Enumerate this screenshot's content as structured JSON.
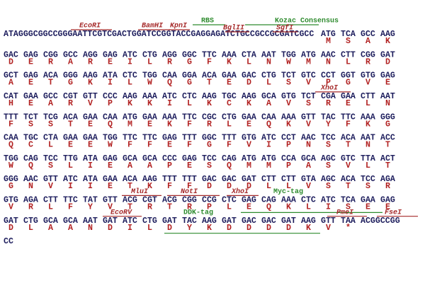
{
  "lines": [
    {
      "leader": "ATAGGGCGGCCGGGAATTCGTCGACTGGATCCGGTACCGAGGAGATCTGCCGCCGCGATCGCC",
      "codons": [
        "ATG",
        "TCA",
        "GCC",
        "AAG"
      ],
      "aa": [
        "M",
        "S",
        "A",
        "K"
      ],
      "annotations": [
        {
          "label": "EcoRI",
          "color": "#a52a2a"
        },
        {
          "label": "BamHI",
          "color": "#a52a2a"
        },
        {
          "label": "KpnI",
          "color": "#a52a2a"
        },
        {
          "label": "RBS",
          "color": "#2e8b2e"
        },
        {
          "label": "BglII",
          "color": "#a52a2a"
        },
        {
          "label": "Kozac Consensus",
          "color": "#2e8b2e"
        },
        {
          "label": "SgfI",
          "color": "#a52a2a"
        }
      ]
    },
    {
      "codons": [
        "GAC",
        "GAG",
        "CGG",
        "GCC",
        "AGG",
        "GAG",
        "ATC",
        "CTG",
        "AGG",
        "GGC",
        "TTC",
        "AAA",
        "CTA",
        "AAT",
        "TGG",
        "ATG",
        "AAC",
        "CTT",
        "CGG",
        "GAT"
      ],
      "aa": [
        "D",
        "E",
        "R",
        "A",
        "R",
        "E",
        "I",
        "L",
        "R",
        "G",
        "F",
        "K",
        "L",
        "N",
        "W",
        "M",
        "N",
        "L",
        "R",
        "D"
      ]
    },
    {
      "codons": [
        "GCT",
        "GAG",
        "ACA",
        "GGG",
        "AAG",
        "ATA",
        "CTC",
        "TGG",
        "CAA",
        "GGA",
        "ACA",
        "GAA",
        "GAC",
        "CTG",
        "TCT",
        "GTC",
        "CCT",
        "GGT",
        "GTG",
        "GAG"
      ],
      "aa": [
        "A",
        "E",
        "T",
        "G",
        "K",
        "I",
        "L",
        "W",
        "Q",
        "G",
        "T",
        "E",
        "D",
        "L",
        "S",
        "V",
        "P",
        "G",
        "V",
        "E"
      ]
    },
    {
      "codons": [
        "CAT",
        "GAA",
        "GCC",
        "CGT",
        "GTT",
        "CCC",
        "AAG",
        "AAA",
        "ATC",
        "CTC",
        "AAG",
        "TGC",
        "AAG",
        "GCA",
        "GTG",
        "TCT",
        "CGA",
        "GAA",
        "CTT",
        "AAT"
      ],
      "aa": [
        "H",
        "E",
        "A",
        "R",
        "V",
        "P",
        "K",
        "K",
        "I",
        "L",
        "K",
        "C",
        "K",
        "A",
        "V",
        "S",
        "R",
        "E",
        "L",
        "N"
      ],
      "annotations": [
        {
          "label": "XhoI",
          "color": "#a52a2a"
        }
      ]
    },
    {
      "codons": [
        "TTT",
        "TCT",
        "TCG",
        "ACA",
        "GAA",
        "CAA",
        "ATG",
        "GAA",
        "AAA",
        "TTC",
        "CGC",
        "CTG",
        "GAA",
        "CAA",
        "AAA",
        "GTT",
        "TAC",
        "TTC",
        "AAA",
        "GGG"
      ],
      "aa": [
        "F",
        "S",
        "S",
        "T",
        "E",
        "Q",
        "M",
        "E",
        "K",
        "F",
        "R",
        "L",
        "E",
        "Q",
        "K",
        "V",
        "Y",
        "F",
        "K",
        "G"
      ]
    },
    {
      "codons": [
        "CAA",
        "TGC",
        "CTA",
        "GAA",
        "GAA",
        "TGG",
        "TTC",
        "TTC",
        "GAG",
        "TTT",
        "GGC",
        "TTT",
        "GTG",
        "ATC",
        "CCT",
        "AAC",
        "TCC",
        "ACA",
        "AAT",
        "ACC"
      ],
      "aa": [
        "Q",
        "C",
        "L",
        "E",
        "E",
        "W",
        "F",
        "F",
        "E",
        "F",
        "G",
        "F",
        "V",
        "I",
        "P",
        "N",
        "S",
        "T",
        "N",
        "T"
      ]
    },
    {
      "codons": [
        "TGG",
        "CAG",
        "TCC",
        "TTG",
        "ATA",
        "GAG",
        "GCA",
        "GCA",
        "CCC",
        "GAG",
        "TCC",
        "CAG",
        "ATG",
        "ATG",
        "CCA",
        "GCA",
        "AGC",
        "GTC",
        "TTA",
        "ACT"
      ],
      "aa": [
        "W",
        "Q",
        "S",
        "L",
        "I",
        "E",
        "A",
        "A",
        "P",
        "E",
        "S",
        "Q",
        "M",
        "M",
        "P",
        "A",
        "S",
        "V",
        "L",
        "T"
      ]
    },
    {
      "codons": [
        "GGG",
        "AAC",
        "GTT",
        "ATC",
        "ATA",
        "GAA",
        "ACA",
        "AAG",
        "TTT",
        "TTT",
        "GAC",
        "GAC",
        "GAT",
        "CTT",
        "CTT",
        "GTA",
        "AGC",
        "ACA",
        "TCC",
        "AGA"
      ],
      "aa": [
        "G",
        "N",
        "V",
        "I",
        "I",
        "E",
        "T",
        "K",
        "F",
        "F",
        "D",
        "D",
        "D",
        "L",
        "L",
        "V",
        "S",
        "T",
        "S",
        "R"
      ]
    },
    {
      "codons": [
        "GTG",
        "AGA",
        "CTT",
        "TTC",
        "TAT",
        "GTT",
        "ACG",
        "CGT",
        "ACG",
        "CGG",
        "CCG",
        "CTC",
        "GAG",
        "CAG",
        "AAA",
        "CTC",
        "ATC",
        "TCA",
        "GAA",
        "GAG"
      ],
      "aa": [
        "V",
        "R",
        "L",
        "F",
        "Y",
        "V",
        "T",
        "R",
        "T",
        "R",
        "P",
        "L",
        "E",
        "Q",
        "K",
        "L",
        "I",
        "S",
        "E",
        "E"
      ],
      "annotations": [
        {
          "label": "MluI",
          "color": "#a52a2a"
        },
        {
          "label": "NotI",
          "color": "#a52a2a"
        },
        {
          "label": "XhoI",
          "color": "#a52a2a"
        },
        {
          "label": "Myc-tag",
          "color": "#2e8b2e"
        }
      ]
    },
    {
      "codons": [
        "GAT",
        "CTG",
        "GCA",
        "GCA",
        "AAT",
        "GAT",
        "ATC",
        "CTG",
        "GAT",
        "TAC",
        "AAG",
        "GAT",
        "GAC",
        "GAC",
        "GAT",
        "AAG",
        "GTT",
        "TAA"
      ],
      "aa": [
        "D",
        "L",
        "A",
        "A",
        "N",
        "D",
        "I",
        "L",
        "D",
        "Y",
        "K",
        "D",
        "D",
        "D",
        "D",
        "K",
        "V",
        "*"
      ],
      "trailer": "ACGGCCGG",
      "annotations": [
        {
          "label": "EcoRV",
          "color": "#a52a2a"
        },
        {
          "label": "DDK-tag",
          "color": "#2e8b2e"
        },
        {
          "label": "PmeI",
          "color": "#a52a2a"
        },
        {
          "label": "FseI",
          "color": "#a52a2a"
        }
      ]
    },
    {
      "leader": "CC",
      "codons": [],
      "aa": []
    }
  ]
}
